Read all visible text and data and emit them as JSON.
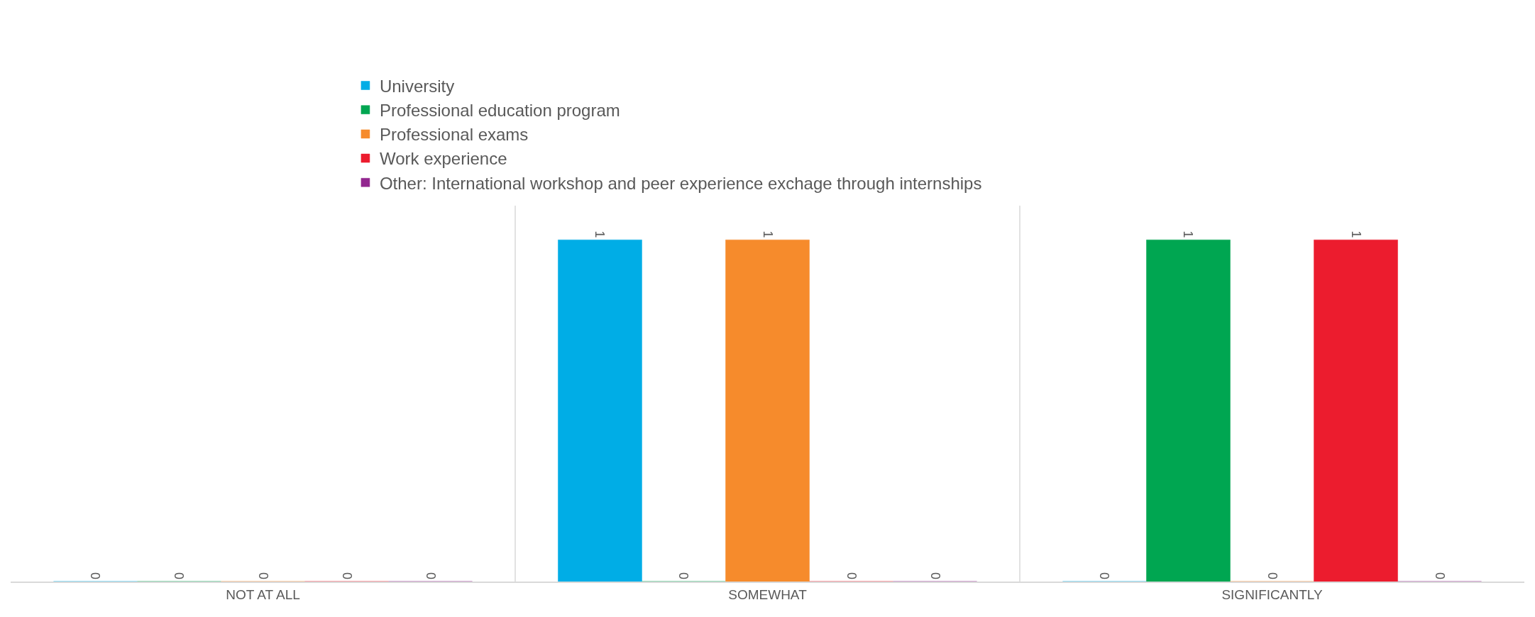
{
  "chart_data": {
    "type": "bar",
    "categories": [
      "NOT AT ALL",
      "SOMEWHAT",
      "SIGNIFICANTLY"
    ],
    "series": [
      {
        "name": "University",
        "color": "#00ade6",
        "values": [
          0,
          1,
          0
        ]
      },
      {
        "name": "Professional education program",
        "color": "#00a651",
        "values": [
          0,
          0,
          1
        ]
      },
      {
        "name": "Professional exams",
        "color": "#f68b2c",
        "values": [
          0,
          1,
          0
        ]
      },
      {
        "name": "Work experience",
        "color": "#ec1c2e",
        "values": [
          0,
          0,
          1
        ]
      },
      {
        "name": "Other: International workshop and peer experience exchage through internships",
        "color": "#92278f",
        "values": [
          0,
          0,
          0
        ]
      }
    ],
    "data_labels": true,
    "grid": "x",
    "legend": "top",
    "tick_labels": "x"
  }
}
